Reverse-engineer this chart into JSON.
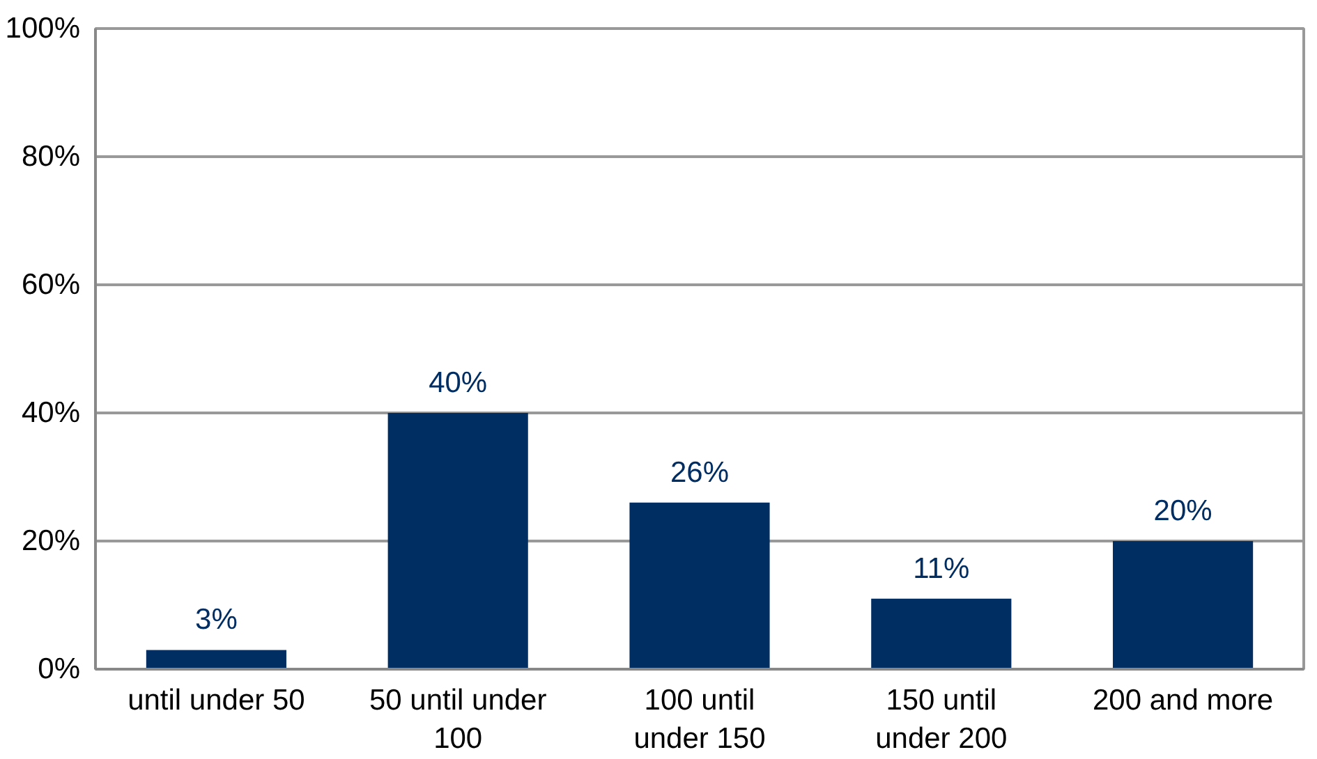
{
  "chart_data": {
    "type": "bar",
    "categories": [
      "until under 50",
      "50 until under 100",
      "100 until under 150",
      "150 until under 200",
      "200 and more"
    ],
    "values": [
      3,
      40,
      26,
      11,
      20
    ],
    "color": "#002d62",
    "ylim": [
      0,
      100
    ],
    "yticks": [
      {
        "value": 0,
        "label": "0%"
      },
      {
        "value": 20,
        "label": "20%"
      },
      {
        "value": 40,
        "label": "40%"
      },
      {
        "value": 60,
        "label": "60%"
      },
      {
        "value": 80,
        "label": "80%"
      },
      {
        "value": 100,
        "label": "100%"
      }
    ],
    "value_labels": [
      "3%",
      "40%",
      "26%",
      "11%",
      "20%"
    ],
    "grid": "y"
  }
}
